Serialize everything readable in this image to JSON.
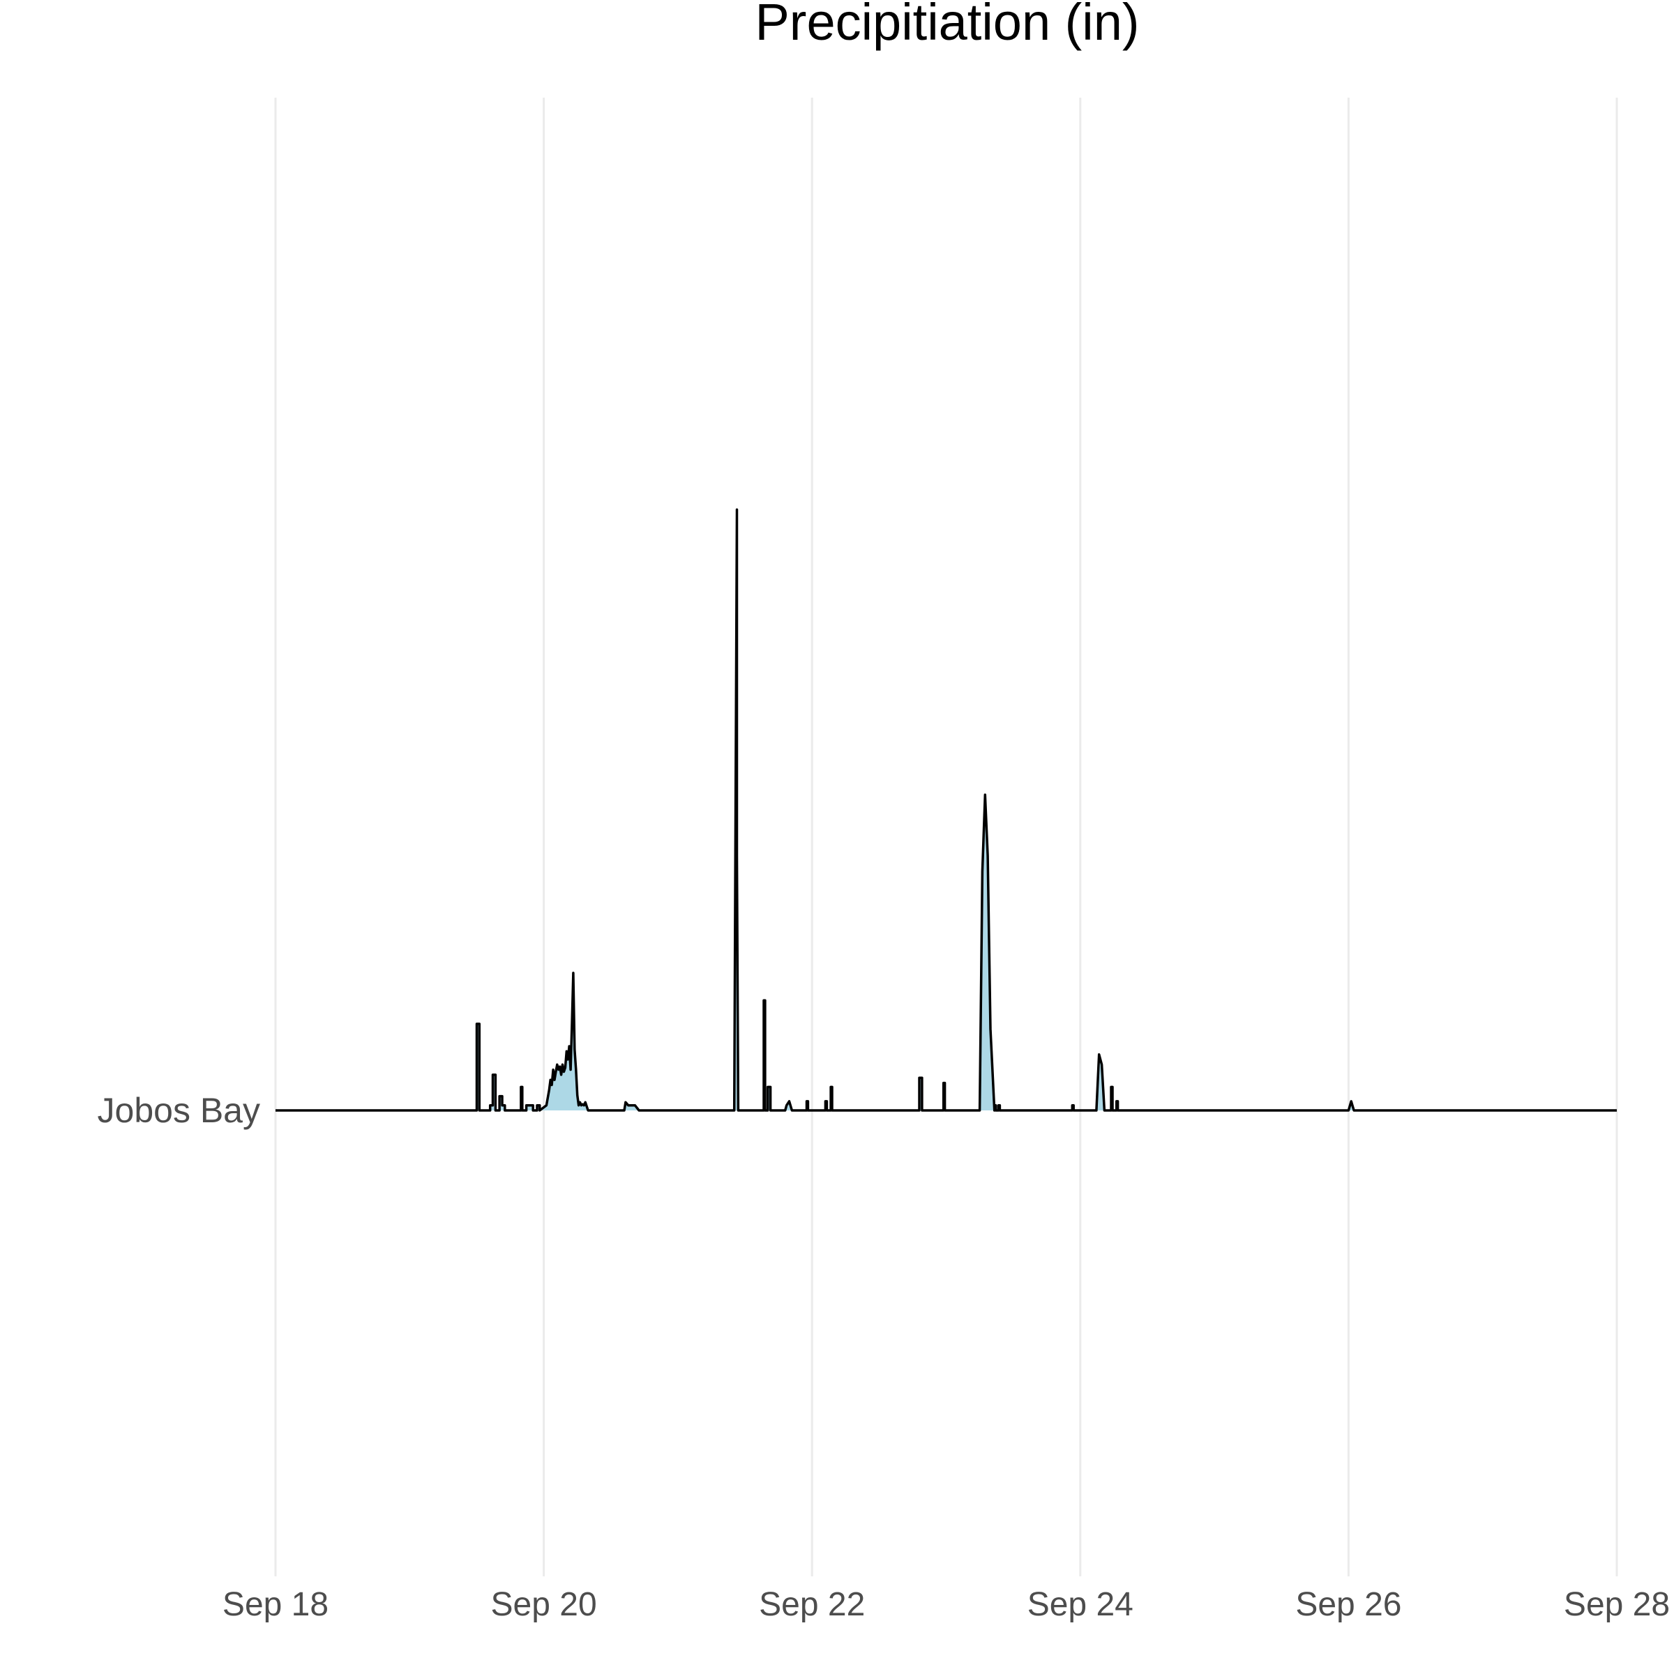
{
  "chart_data": {
    "type": "area",
    "title": "Precipitiation (in)",
    "xlabel": "",
    "ylabel": "",
    "x_ticks": [
      "Sep 18",
      "Sep 20",
      "Sep 22",
      "Sep 24",
      "Sep 26",
      "Sep 28"
    ],
    "x_range_days": [
      0,
      10
    ],
    "rows": [
      "Jobos Bay"
    ],
    "grid": "vertical",
    "series": [
      {
        "row": "Jobos Bay",
        "fill_color": "#add8e6",
        "line_color": "#000000",
        "x": [
          0,
          1.5,
          1.5,
          1.52,
          1.52,
          1.6,
          1.6,
          1.62,
          1.62,
          1.64,
          1.64,
          1.67,
          1.67,
          1.69,
          1.69,
          1.71,
          1.71,
          1.83,
          1.83,
          1.84,
          1.84,
          1.87,
          1.87,
          1.92,
          1.92,
          1.95,
          1.95,
          1.97,
          1.97,
          2.02,
          2.04,
          2.05,
          2.06,
          2.07,
          2.08,
          2.09,
          2.1,
          2.11,
          2.12,
          2.13,
          2.14,
          2.15,
          2.16,
          2.17,
          2.18,
          2.19,
          2.2,
          2.21,
          2.22,
          2.23,
          2.24,
          2.25,
          2.26,
          2.27,
          2.28,
          2.29,
          2.3,
          2.31,
          2.33,
          2.6,
          2.61,
          2.63,
          2.66,
          2.68,
          2.71,
          3.42,
          3.43,
          3.44,
          3.44,
          3.45,
          3.64,
          3.64,
          3.65,
          3.65,
          3.67,
          3.67,
          3.69,
          3.69,
          3.8,
          3.81,
          3.83,
          3.85,
          3.96,
          3.96,
          3.97,
          3.97,
          4.1,
          4.1,
          4.11,
          4.11,
          4.14,
          4.14,
          4.15,
          4.15,
          4.8,
          4.8,
          4.82,
          4.82,
          4.98,
          4.98,
          4.99,
          4.99,
          5.25,
          5.27,
          5.29,
          5.31,
          5.33,
          5.36,
          5.36,
          5.37,
          5.37,
          5.39,
          5.39,
          5.4,
          5.4,
          5.94,
          5.94,
          5.95,
          5.95,
          6.12,
          6.14,
          6.16,
          6.18,
          6.23,
          6.23,
          6.24,
          6.24,
          6.27,
          6.27,
          6.28,
          6.28,
          8.0,
          8.02,
          8.04,
          10
        ],
        "y": [
          0,
          0,
          0.85,
          0.85,
          0,
          0,
          0.05,
          0.05,
          0.35,
          0.35,
          0,
          0,
          0.14,
          0.14,
          0.05,
          0.05,
          0,
          0,
          0.23,
          0.23,
          0,
          0,
          0.05,
          0.05,
          0,
          0,
          0.05,
          0.05,
          0,
          0.05,
          0.2,
          0.3,
          0.25,
          0.4,
          0.3,
          0.38,
          0.45,
          0.4,
          0.43,
          0.35,
          0.45,
          0.38,
          0.42,
          0.58,
          0.5,
          0.63,
          0.4,
          0.85,
          1.35,
          0.6,
          0.4,
          0.15,
          0.05,
          0.08,
          0.05,
          0.06,
          0.05,
          0.08,
          0,
          0,
          0.08,
          0.05,
          0.05,
          0.05,
          0,
          0,
          3.0,
          5.9,
          2.5,
          0,
          0,
          1.08,
          1.08,
          0,
          0,
          0.23,
          0.23,
          0,
          0,
          0.05,
          0.09,
          0,
          0,
          0.09,
          0.09,
          0,
          0,
          0.09,
          0.09,
          0,
          0,
          0.23,
          0.23,
          0,
          0,
          0.32,
          0.32,
          0,
          0,
          0.27,
          0.27,
          0,
          0,
          2.35,
          3.1,
          2.5,
          0.8,
          0,
          0.05,
          0.05,
          0,
          0,
          0.05,
          0.05,
          0,
          0,
          0.05,
          0.05,
          0,
          0,
          0.55,
          0.45,
          0,
          0,
          0.23,
          0.23,
          0,
          0,
          0.09,
          0.09,
          0,
          0,
          0.09,
          0,
          0
        ]
      }
    ]
  }
}
